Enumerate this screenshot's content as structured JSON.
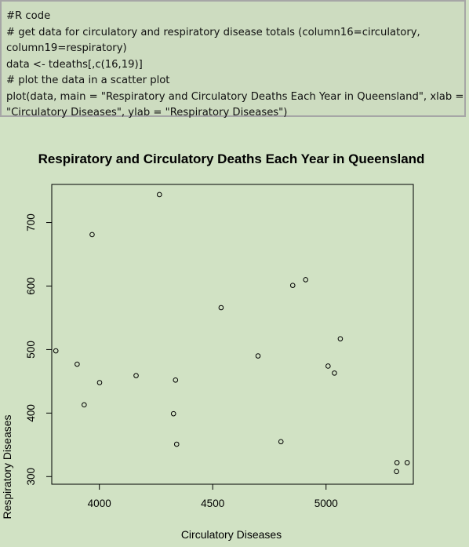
{
  "code_block": {
    "lines": [
      "#R code",
      "# get data for circulatory and respiratory disease totals (column16=circulatory,",
      "column19=respiratory)",
      "data <- tdeaths[,c(16,19)]",
      "# plot the data in a scatter plot",
      "plot(data, main = \"Respiratory and Circulatory Deaths Each Year in Queensland\", xlab =",
      "\"Circulatory Diseases\", ylab = \"Respiratory Diseases\")"
    ]
  },
  "chart_data": {
    "type": "scatter",
    "title": "Respiratory and Circulatory Deaths Each Year in Queensland",
    "xlabel": "Circulatory Diseases",
    "ylabel": "Respiratory Diseases",
    "xlim": [
      3790,
      5385
    ],
    "ylim": [
      288,
      760
    ],
    "xticks": [
      4000,
      4500,
      5000
    ],
    "yticks": [
      300,
      400,
      500,
      600,
      700
    ],
    "grid": false,
    "points": [
      {
        "x": 3808,
        "y": 498
      },
      {
        "x": 3902,
        "y": 477
      },
      {
        "x": 3933,
        "y": 413
      },
      {
        "x": 3968,
        "y": 681
      },
      {
        "x": 4001,
        "y": 448
      },
      {
        "x": 4162,
        "y": 459
      },
      {
        "x": 4265,
        "y": 744
      },
      {
        "x": 4327,
        "y": 399
      },
      {
        "x": 4336,
        "y": 452
      },
      {
        "x": 4341,
        "y": 351
      },
      {
        "x": 4537,
        "y": 566
      },
      {
        "x": 4700,
        "y": 490
      },
      {
        "x": 4801,
        "y": 355
      },
      {
        "x": 4853,
        "y": 601
      },
      {
        "x": 4910,
        "y": 610
      },
      {
        "x": 5009,
        "y": 474
      },
      {
        "x": 5037,
        "y": 463
      },
      {
        "x": 5063,
        "y": 517
      },
      {
        "x": 5313,
        "y": 322
      },
      {
        "x": 5311,
        "y": 308
      },
      {
        "x": 5358,
        "y": 322
      }
    ]
  }
}
